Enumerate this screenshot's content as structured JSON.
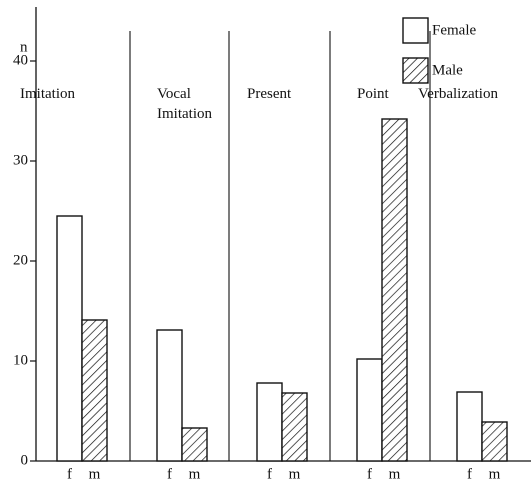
{
  "chart_data": {
    "type": "bar",
    "y_label": "n",
    "categories": [
      "Imitation",
      "Vocal Imitation",
      "Present",
      "Point",
      "Verbalization"
    ],
    "bar_labels": [
      "f",
      "m"
    ],
    "series": [
      {
        "name": "Female",
        "color": "#ffffff",
        "values": [
          24.5,
          13.1,
          7.8,
          10.2,
          6.9
        ]
      },
      {
        "name": "Male",
        "color": "#ffffff",
        "hatch": true,
        "values": [
          14.1,
          3.3,
          6.8,
          34.2,
          3.9
        ]
      }
    ],
    "ylim": [
      0,
      45
    ],
    "yticks": [
      0,
      10,
      20,
      30,
      40
    ],
    "grid": false
  }
}
